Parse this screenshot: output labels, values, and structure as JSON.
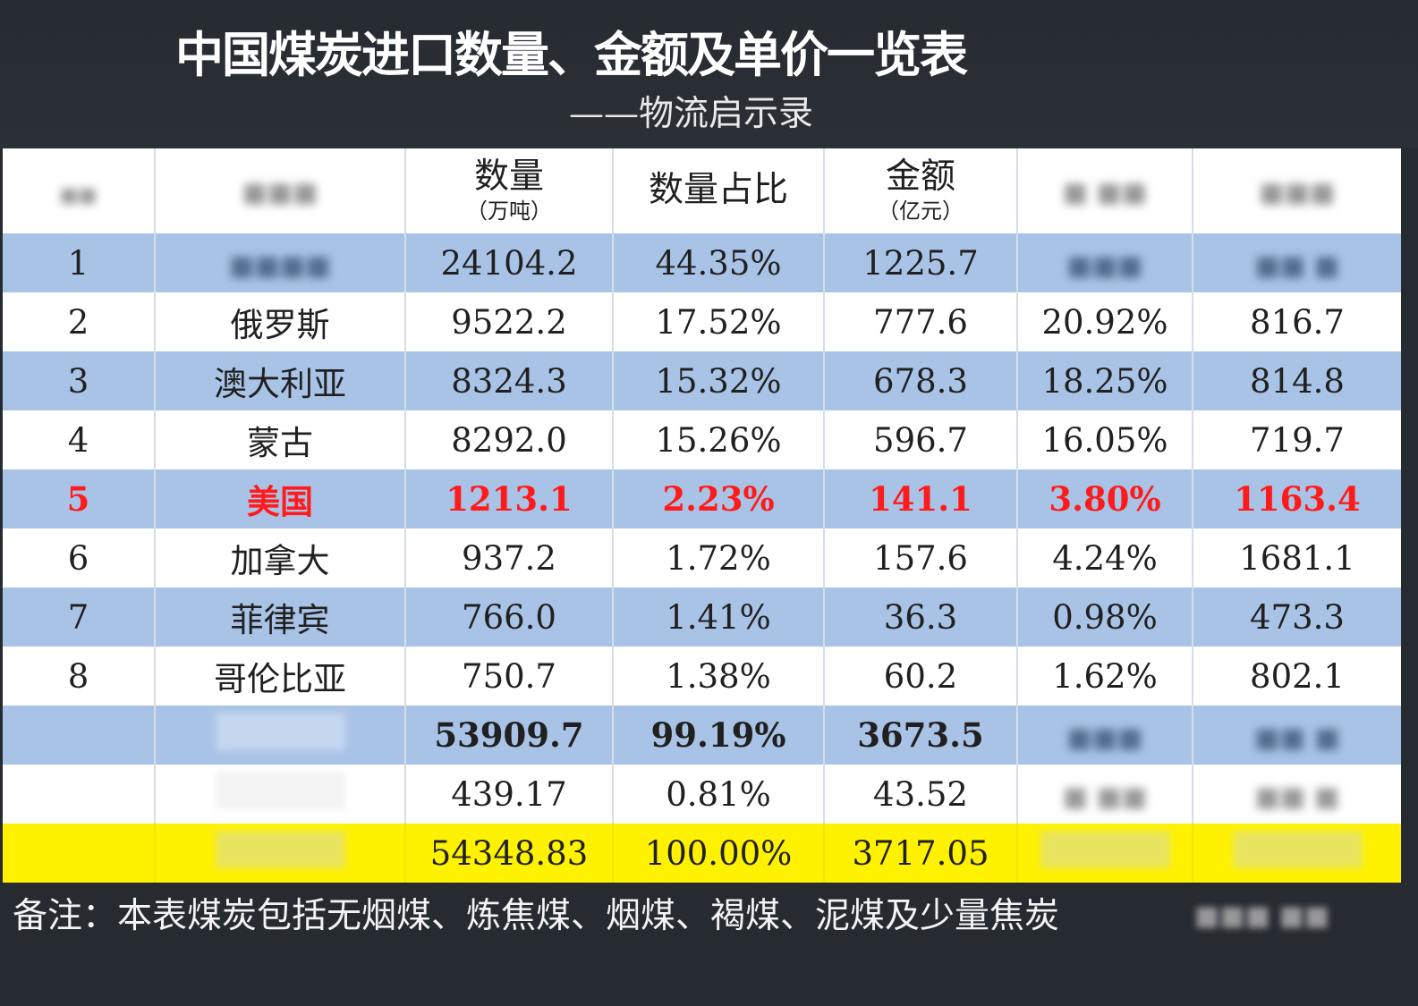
{
  "header": {
    "title": "中国煤炭进口数量、金额及单价一览表",
    "subtitle": "——物流启示录"
  },
  "columns": [
    {
      "main": "",
      "unit": ""
    },
    {
      "main": "",
      "unit": ""
    },
    {
      "main": "数量",
      "unit": "（万吨）"
    },
    {
      "main": "数量占比",
      "unit": ""
    },
    {
      "main": "金额",
      "unit": "（亿元）"
    },
    {
      "main": "",
      "unit": ""
    },
    {
      "main": "",
      "unit": ""
    }
  ],
  "rows": [
    {
      "rank": "1",
      "country": "",
      "quantity": "24104.2",
      "quantity_share": "44.35%",
      "amount": "1225.7",
      "amount_share": "",
      "unit_price": ""
    },
    {
      "rank": "2",
      "country": "俄罗斯",
      "quantity": "9522.2",
      "quantity_share": "17.52%",
      "amount": "777.6",
      "amount_share": "20.92%",
      "unit_price": "816.7"
    },
    {
      "rank": "3",
      "country": "澳大利亚",
      "quantity": "8324.3",
      "quantity_share": "15.32%",
      "amount": "678.3",
      "amount_share": "18.25%",
      "unit_price": "814.8"
    },
    {
      "rank": "4",
      "country": "蒙古",
      "quantity": "8292.0",
      "quantity_share": "15.26%",
      "amount": "596.7",
      "amount_share": "16.05%",
      "unit_price": "719.7"
    },
    {
      "rank": "5",
      "country": "美国",
      "quantity": "1213.1",
      "quantity_share": "2.23%",
      "amount": "141.1",
      "amount_share": "3.80%",
      "unit_price": "1163.4"
    },
    {
      "rank": "6",
      "country": "加拿大",
      "quantity": "937.2",
      "quantity_share": "1.72%",
      "amount": "157.6",
      "amount_share": "4.24%",
      "unit_price": "1681.1"
    },
    {
      "rank": "7",
      "country": "菲律宾",
      "quantity": "766.0",
      "quantity_share": "1.41%",
      "amount": "36.3",
      "amount_share": "0.98%",
      "unit_price": "473.3"
    },
    {
      "rank": "8",
      "country": "哥伦比亚",
      "quantity": "750.7",
      "quantity_share": "1.38%",
      "amount": "60.2",
      "amount_share": "1.62%",
      "unit_price": "802.1"
    }
  ],
  "subtotal": {
    "quantity": "53909.7",
    "quantity_share": "99.19%",
    "amount": "3673.5"
  },
  "other": {
    "quantity": "439.17",
    "quantity_share": "0.81%",
    "amount": "43.52"
  },
  "total": {
    "quantity": "54348.83",
    "quantity_share": "100.00%",
    "amount": "3717.05"
  },
  "footer": {
    "note": "备注：本表煤炭包括无烟煤、炼焦煤、烟煤、褐煤、泥煤及少量焦炭"
  },
  "colors": {
    "background": "#262a31",
    "row_blue": "#a9c3e6",
    "row_white": "#ffffff",
    "highlight_red": "#ff1b1b",
    "total_yellow": "#fff200"
  }
}
